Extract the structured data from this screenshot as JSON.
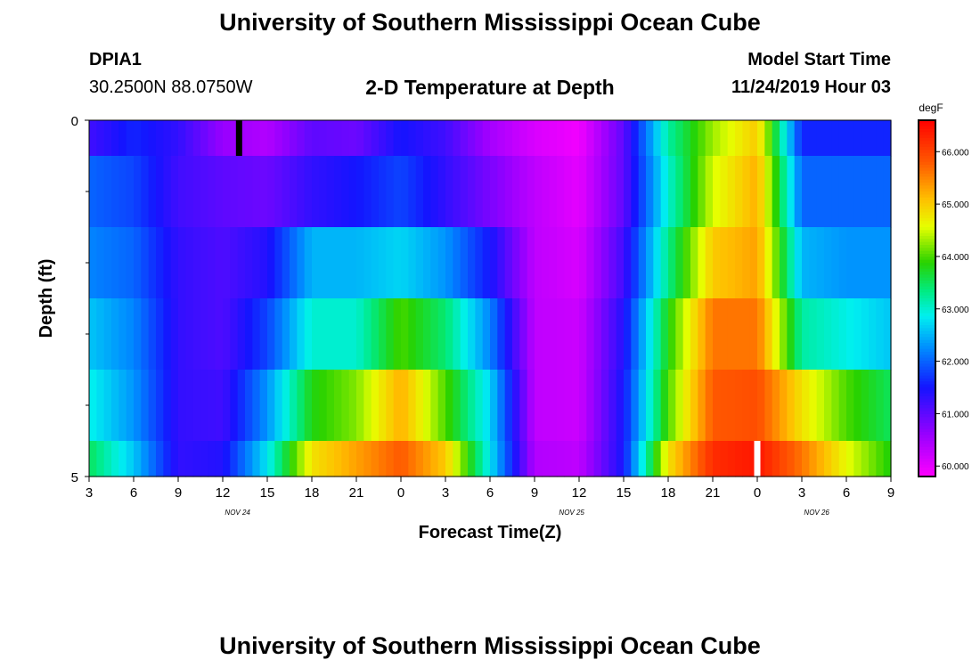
{
  "page": {
    "title_top": "University of Southern Mississippi Ocean Cube",
    "title_bottom": "University of Southern Mississippi Ocean Cube",
    "station_id": "DPIA1",
    "station_coords": "30.2500N 88.0750W",
    "plot_title": "2-D Temperature at Depth",
    "model_start_label": "Model Start Time",
    "model_start_value": "11/24/2019 Hour 03"
  },
  "chart_data": {
    "type": "heatmap",
    "title": "2-D Temperature at Depth",
    "xlabel": "Forecast Time(Z)",
    "ylabel": "Depth (ft)",
    "xlim": [
      3,
      57
    ],
    "ylim": [
      0,
      5
    ],
    "y_tick_labels": [
      {
        "value": 0,
        "label": "0"
      },
      {
        "value": 5,
        "label": "5"
      }
    ],
    "y_minor_ticks": [
      1,
      2,
      3,
      4
    ],
    "x_ticks": [
      {
        "value": 3,
        "label": "3"
      },
      {
        "value": 6,
        "label": "6"
      },
      {
        "value": 9,
        "label": "9"
      },
      {
        "value": 12,
        "label": "12"
      },
      {
        "value": 15,
        "label": "15"
      },
      {
        "value": 18,
        "label": "18"
      },
      {
        "value": 21,
        "label": "21"
      },
      {
        "value": 24,
        "label": "0"
      },
      {
        "value": 27,
        "label": "3"
      },
      {
        "value": 30,
        "label": "6"
      },
      {
        "value": 33,
        "label": "9"
      },
      {
        "value": 36,
        "label": "12"
      },
      {
        "value": 39,
        "label": "15"
      },
      {
        "value": 42,
        "label": "18"
      },
      {
        "value": 45,
        "label": "21"
      },
      {
        "value": 48,
        "label": "0"
      },
      {
        "value": 51,
        "label": "3"
      },
      {
        "value": 54,
        "label": "6"
      },
      {
        "value": 57,
        "label": "9"
      }
    ],
    "date_labels": [
      {
        "value": 13,
        "label": "NOV 24"
      },
      {
        "value": 35.5,
        "label": "NOV 25"
      },
      {
        "value": 52,
        "label": "NOV 26"
      }
    ],
    "colorbar": {
      "unit": "degF",
      "min": 59.8,
      "max": 66.6,
      "ticks": [
        {
          "value": 60.0,
          "label": "60.000"
        },
        {
          "value": 61.0,
          "label": "61.000"
        },
        {
          "value": 62.0,
          "label": "62.000"
        },
        {
          "value": 63.0,
          "label": "63.000"
        },
        {
          "value": 64.0,
          "label": "64.000"
        },
        {
          "value": 65.0,
          "label": "65.000"
        },
        {
          "value": 66.0,
          "label": "66.000"
        }
      ]
    },
    "depth_layers": [
      0,
      1,
      2,
      3,
      4,
      5
    ],
    "time_nodes": [
      3,
      6,
      9,
      12,
      15,
      18,
      21,
      24,
      27,
      30,
      33,
      36,
      39,
      42,
      45,
      48,
      51,
      54,
      57
    ],
    "series": [
      {
        "name": "0-0.5 ft",
        "values": [
          61.2,
          61.6,
          61.3,
          60.6,
          60.4,
          61.0,
          60.9,
          61.5,
          61.2,
          60.5,
          60.1,
          59.9,
          61.0,
          63.2,
          64.3,
          65.0,
          61.6,
          61.6,
          61.6
        ]
      },
      {
        "name": "0.5-1.5 ft",
        "values": [
          62.0,
          61.8,
          61.2,
          61.0,
          60.9,
          61.3,
          61.5,
          61.8,
          61.3,
          60.8,
          60.3,
          60.0,
          61.0,
          63.0,
          64.5,
          65.2,
          62.0,
          62.0,
          62.0
        ]
      },
      {
        "name": "1.5-2.5 ft",
        "values": [
          62.2,
          62.0,
          61.3,
          61.1,
          61.4,
          62.5,
          62.5,
          62.7,
          62.3,
          61.5,
          60.3,
          60.1,
          61.2,
          63.3,
          65.0,
          65.3,
          62.5,
          62.3,
          62.3
        ]
      },
      {
        "name": "2.5-3.5 ft",
        "values": [
          62.6,
          62.2,
          61.3,
          61.1,
          61.8,
          63.0,
          63.0,
          64.0,
          63.4,
          62.2,
          60.3,
          60.2,
          61.4,
          63.8,
          65.6,
          65.6,
          63.2,
          62.9,
          62.6
        ]
      },
      {
        "name": "3.5-4.5 ft",
        "values": [
          62.9,
          62.3,
          61.3,
          61.2,
          62.3,
          63.8,
          64.2,
          65.2,
          64.0,
          62.7,
          60.3,
          60.2,
          61.5,
          64.0,
          65.8,
          65.9,
          64.8,
          64.0,
          63.5
        ]
      },
      {
        "name": "4.5-5 ft",
        "values": [
          63.5,
          62.6,
          61.3,
          61.4,
          62.8,
          64.8,
          65.3,
          65.8,
          65.0,
          62.8,
          60.4,
          60.3,
          61.5,
          64.8,
          66.2,
          66.4,
          65.6,
          64.6,
          63.8
        ]
      }
    ],
    "markers": [
      {
        "time": 13.1,
        "depth_top": 0,
        "depth_bottom": 0.5,
        "color": "#000000"
      },
      {
        "time": 48,
        "depth_top": 4.5,
        "depth_bottom": 5,
        "color": "#ffffff"
      }
    ]
  }
}
